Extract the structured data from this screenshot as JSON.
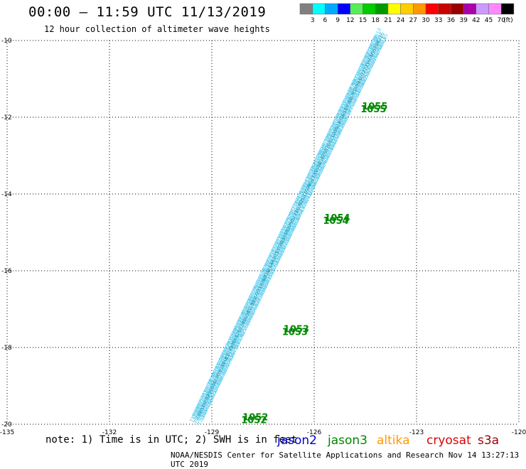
{
  "header": {
    "title": "00:00 – 11:59 UTC 11/13/2019",
    "subtitle": "12 hour collection of altimeter wave heights"
  },
  "color_scale": {
    "values": [
      "3",
      "6",
      "9",
      "12",
      "15",
      "18",
      "21",
      "24",
      "27",
      "30",
      "33",
      "36",
      "39",
      "42",
      "45",
      "70"
    ],
    "unit": "(ft)",
    "colors": [
      "#808080",
      "#00ffff",
      "#00aaff",
      "#0000ff",
      "#55ee55",
      "#00cc00",
      "#009900",
      "#ffff00",
      "#ffcc00",
      "#ff9900",
      "#ff0000",
      "#cc0000",
      "#990000",
      "#aa00aa",
      "#cc99ff",
      "#ff88ff",
      "#000000"
    ]
  },
  "footer": {
    "note": "note: 1) Time is in UTC; 2) SWH is in feet",
    "credit": "NOAA/NESDIS Center for Satellite Applications and Research   Nov 14 13:27:13 UTC 2019",
    "satellites": [
      {
        "name": "jason2",
        "color": "#0000cc"
      },
      {
        "name": "jason3",
        "color": "#008800"
      },
      {
        "name": "altika",
        "color": "#ff9900"
      },
      {
        "name": "cryosat",
        "color": "#dd0000"
      },
      {
        "name": "s3a",
        "color": "#990000"
      }
    ]
  },
  "chart_data": {
    "type": "scatter",
    "title": "",
    "xlabel": "",
    "ylabel": "",
    "xlim": [
      -135,
      -120
    ],
    "ylim": [
      -20,
      -10
    ],
    "x_ticks": [
      "-135",
      "-132",
      "-129",
      "-126",
      "-123",
      "-120"
    ],
    "y_ticks": [
      "-10",
      "-12",
      "-14",
      "-16",
      "-18",
      "-20"
    ],
    "grid": true,
    "track": {
      "satellite": "jason3",
      "start": [
        -129.4,
        -20.0
      ],
      "end": [
        -124.0,
        -10.0
      ],
      "swh_ft_range": [
        7.0,
        11.0
      ],
      "color": "#33bbdd"
    },
    "time_labels": [
      {
        "text": "1055",
        "lon": -124.6,
        "lat": -11.8
      },
      {
        "text": "1054",
        "lon": -125.7,
        "lat": -14.7
      },
      {
        "text": "1053",
        "lon": -126.9,
        "lat": -17.6
      },
      {
        "text": "1052",
        "lon": -128.1,
        "lat": -19.9
      }
    ],
    "time_label_color": "#008800"
  }
}
